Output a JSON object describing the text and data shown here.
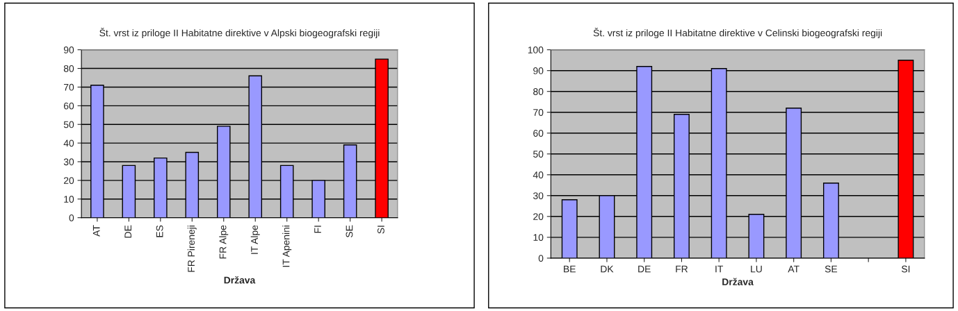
{
  "chart_data": [
    {
      "type": "bar",
      "title": "Št. vrst iz priloge II Habitatne direktive v Alpski biogeografski regiji",
      "xlabel": "Država",
      "categories": [
        "AT",
        "DE",
        "ES",
        "FR Pireneji",
        "FR Alpe",
        "IT Alpe",
        "IT Apenini",
        "FI",
        "SE",
        "SI"
      ],
      "values": [
        71,
        28,
        32,
        35,
        49,
        76,
        28,
        20,
        39,
        85
      ],
      "colors": [
        "#9999ff",
        "#9999ff",
        "#9999ff",
        "#9999ff",
        "#9999ff",
        "#9999ff",
        "#9999ff",
        "#9999ff",
        "#9999ff",
        "#ff0000"
      ],
      "ylim": [
        0,
        90
      ],
      "yticks": [
        0,
        10,
        20,
        30,
        40,
        50,
        60,
        70,
        80,
        90
      ],
      "grid": "y",
      "legend": false
    },
    {
      "type": "bar",
      "title": "Št. vrst iz priloge II Habitatne direktive v Celinski biogeografski regiji",
      "xlabel": "Država",
      "categories": [
        "BE",
        "DK",
        "DE",
        "FR",
        "IT",
        "LU",
        "AT",
        "SE",
        null,
        "SI"
      ],
      "values": [
        28,
        30,
        92,
        69,
        91,
        21,
        72,
        36,
        null,
        95
      ],
      "colors": [
        "#9999ff",
        "#9999ff",
        "#9999ff",
        "#9999ff",
        "#9999ff",
        "#9999ff",
        "#9999ff",
        "#9999ff",
        "#9999ff",
        "#ff0000"
      ],
      "ylim": [
        0,
        100
      ],
      "yticks": [
        0,
        10,
        20,
        30,
        40,
        50,
        60,
        70,
        80,
        90,
        100
      ],
      "grid": "y",
      "legend": false
    }
  ]
}
